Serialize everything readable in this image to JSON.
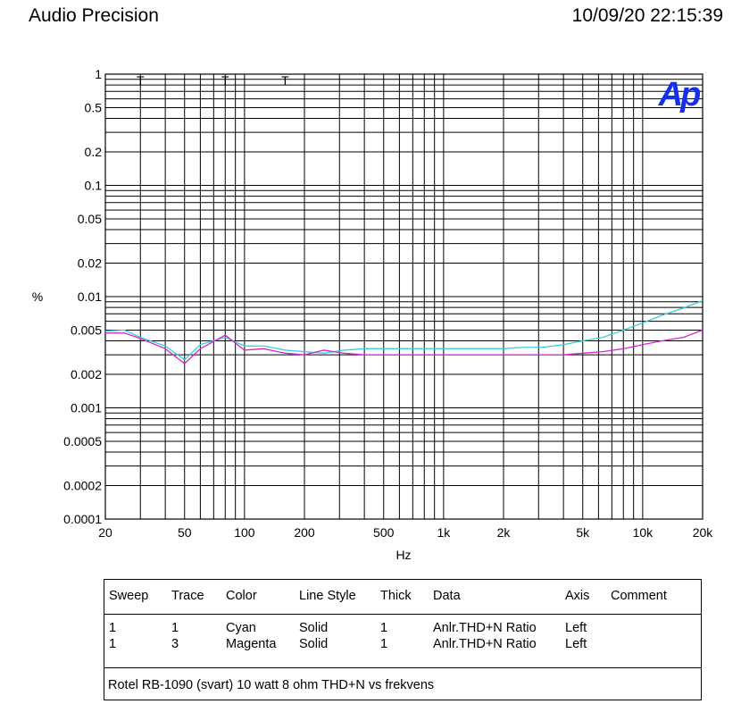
{
  "header": {
    "brand": "Audio Precision",
    "timestamp": "10/09/20 22:15:39"
  },
  "logo": {
    "text": "Ap",
    "color": "#1530e8"
  },
  "chart_data": {
    "type": "line",
    "xlabel": "Hz",
    "ylabel": "%",
    "x_scale": "log",
    "y_scale": "log",
    "xlim": [
      20,
      20000
    ],
    "ylim": [
      0.0001,
      1
    ],
    "x_ticks": [
      {
        "value": 20,
        "label": "20"
      },
      {
        "value": 50,
        "label": "50"
      },
      {
        "value": 100,
        "label": "100"
      },
      {
        "value": 200,
        "label": "200"
      },
      {
        "value": 500,
        "label": "500"
      },
      {
        "value": 1000,
        "label": "1k"
      },
      {
        "value": 2000,
        "label": "2k"
      },
      {
        "value": 5000,
        "label": "5k"
      },
      {
        "value": 10000,
        "label": "10k"
      },
      {
        "value": 20000,
        "label": "20k"
      }
    ],
    "y_ticks": [
      {
        "value": 1,
        "label": "1"
      },
      {
        "value": 0.5,
        "label": "0.5"
      },
      {
        "value": 0.2,
        "label": "0.2"
      },
      {
        "value": 0.1,
        "label": "0.1"
      },
      {
        "value": 0.05,
        "label": "0.05"
      },
      {
        "value": 0.02,
        "label": "0.02"
      },
      {
        "value": 0.01,
        "label": "0.01"
      },
      {
        "value": 0.005,
        "label": "0.005"
      },
      {
        "value": 0.002,
        "label": "0.002"
      },
      {
        "value": 0.001,
        "label": "0.001"
      },
      {
        "value": 0.0005,
        "label": "0.0005"
      },
      {
        "value": 0.0002,
        "label": "0.0002"
      },
      {
        "value": 0.0001,
        "label": "0.0001"
      }
    ],
    "grid": true,
    "top_markers": [
      {
        "value": 30,
        "label": "T"
      },
      {
        "value": 80,
        "label": "T"
      },
      {
        "value": 160,
        "label": "T"
      }
    ],
    "series": [
      {
        "name": "Cyan",
        "color": "#35d0d8",
        "x": [
          20,
          25,
          30,
          40,
          50,
          60,
          80,
          100,
          125,
          160,
          200,
          250,
          315,
          400,
          500,
          630,
          800,
          1000,
          1250,
          1600,
          2000,
          2500,
          3150,
          4000,
          5000,
          6300,
          8000,
          10000,
          12500,
          16000,
          20000
        ],
        "y": [
          0.0049,
          0.005,
          0.0043,
          0.0036,
          0.0027,
          0.0037,
          0.0043,
          0.0036,
          0.0036,
          0.0033,
          0.0032,
          0.0031,
          0.0033,
          0.0034,
          0.0034,
          0.0034,
          0.0034,
          0.0034,
          0.0034,
          0.0034,
          0.0034,
          0.0035,
          0.0035,
          0.0037,
          0.004,
          0.0043,
          0.005,
          0.0058,
          0.0068,
          0.0079,
          0.0092
        ]
      },
      {
        "name": "Magenta",
        "color": "#d526d2",
        "x": [
          20,
          25,
          30,
          40,
          50,
          60,
          80,
          100,
          125,
          160,
          200,
          250,
          315,
          400,
          500,
          630,
          800,
          1000,
          1250,
          1600,
          2000,
          2500,
          3150,
          4000,
          5000,
          6300,
          8000,
          10000,
          12500,
          16000,
          20000
        ],
        "y": [
          0.0047,
          0.0047,
          0.0042,
          0.0034,
          0.0025,
          0.0034,
          0.0045,
          0.0033,
          0.0034,
          0.0031,
          0.003,
          0.0033,
          0.0031,
          0.003,
          0.003,
          0.003,
          0.003,
          0.003,
          0.003,
          0.003,
          0.003,
          0.003,
          0.003,
          0.003,
          0.0031,
          0.0032,
          0.0034,
          0.0037,
          0.004,
          0.0043,
          0.005
        ]
      }
    ]
  },
  "legend_table": {
    "headers": [
      "Sweep",
      "Trace",
      "Color",
      "Line Style",
      "Thick",
      "Data",
      "Axis",
      "Comment"
    ],
    "rows": [
      [
        "1",
        "1",
        "Cyan",
        "Solid",
        "1",
        "Anlr.THD+N Ratio",
        "Left",
        ""
      ],
      [
        "1",
        "3",
        "Magenta",
        "Solid",
        "1",
        "Anlr.THD+N Ratio",
        "Left",
        ""
      ]
    ],
    "comment": "Rotel RB-1090 (svart) 10 watt 8 ohm THD+N vs frekvens"
  }
}
